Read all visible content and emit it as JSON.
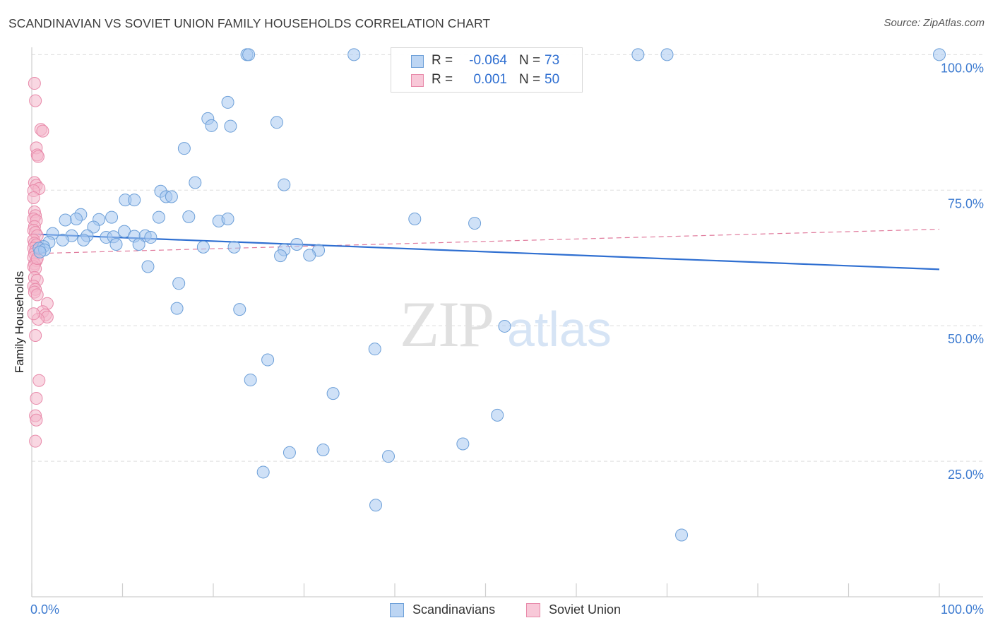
{
  "header": {
    "title": "SCANDINAVIAN VS SOVIET UNION FAMILY HOUSEHOLDS CORRELATION CHART",
    "source": "Source: ZipAtlas.com"
  },
  "watermark": {
    "zip": "ZIP",
    "atlas": "atlas"
  },
  "stats": [
    {
      "r_label": "R =",
      "r_value": "-0.064",
      "n_label": "N =",
      "n_value": "73"
    },
    {
      "r_label": "R =",
      "r_value": "0.001",
      "n_label": "N =",
      "n_value": "50"
    }
  ],
  "legend": {
    "items": [
      "Scandinavians",
      "Soviet Union"
    ]
  },
  "colors": {
    "blue_fill": "#a8c8f0",
    "blue_stroke": "#6c9fd8",
    "blue_line": "#2f6fd1",
    "pink_fill": "#f4b6ca",
    "pink_stroke": "#e88aaa",
    "pink_line": "#e07a9c",
    "tick_label": "#3d7bd0",
    "grid": "#dddddd"
  },
  "chart_data": {
    "type": "scatter",
    "title": "SCANDINAVIAN VS SOVIET UNION FAMILY HOUSEHOLDS CORRELATION CHART",
    "ylabel": "Family Households",
    "xlabel": "",
    "xlim": [
      0,
      100
    ],
    "ylim": [
      0,
      102
    ],
    "x_tick_labels": [
      {
        "value": 0,
        "label": "0.0%"
      },
      {
        "value": 100,
        "label": "100.0%"
      }
    ],
    "y_tick_labels": [
      {
        "value": 100,
        "label": "100.0%"
      },
      {
        "value": 75,
        "label": "75.0%"
      },
      {
        "value": 50,
        "label": "50.0%"
      },
      {
        "value": 25,
        "label": "25.0%"
      }
    ],
    "grid": true,
    "legend_position": "bottom-center",
    "series": [
      {
        "name": "Scandinavians",
        "color": "#a8c8f0",
        "points": [
          [
            23.7,
            100
          ],
          [
            23.9,
            100
          ],
          [
            35.5,
            100
          ],
          [
            66.8,
            100
          ],
          [
            70.0,
            100
          ],
          [
            100.0,
            100
          ],
          [
            21.6,
            91.2
          ],
          [
            19.4,
            88.2
          ],
          [
            19.8,
            86.9
          ],
          [
            21.9,
            86.8
          ],
          [
            27.0,
            87.5
          ],
          [
            16.8,
            82.7
          ],
          [
            18.0,
            76.4
          ],
          [
            27.8,
            76.0
          ],
          [
            14.2,
            74.8
          ],
          [
            14.8,
            73.8
          ],
          [
            15.4,
            73.8
          ],
          [
            10.3,
            73.2
          ],
          [
            11.3,
            73.2
          ],
          [
            5.4,
            70.5
          ],
          [
            8.8,
            70.0
          ],
          [
            4.9,
            69.7
          ],
          [
            3.7,
            69.5
          ],
          [
            7.4,
            69.6
          ],
          [
            17.3,
            70.1
          ],
          [
            14.0,
            70.0
          ],
          [
            20.6,
            69.3
          ],
          [
            21.6,
            69.7
          ],
          [
            42.2,
            69.7
          ],
          [
            48.8,
            68.9
          ],
          [
            6.8,
            68.2
          ],
          [
            2.3,
            67.0
          ],
          [
            4.4,
            66.6
          ],
          [
            6.1,
            66.6
          ],
          [
            8.2,
            66.3
          ],
          [
            9.0,
            66.4
          ],
          [
            10.2,
            67.4
          ],
          [
            11.3,
            66.5
          ],
          [
            12.5,
            66.6
          ],
          [
            13.1,
            66.3
          ],
          [
            3.4,
            65.8
          ],
          [
            5.7,
            65.8
          ],
          [
            1.9,
            65.4
          ],
          [
            9.3,
            65.0
          ],
          [
            11.8,
            65.0
          ],
          [
            29.2,
            65.0
          ],
          [
            1.3,
            64.6
          ],
          [
            0.8,
            64.3
          ],
          [
            1.4,
            64.0
          ],
          [
            0.9,
            63.6
          ],
          [
            18.9,
            64.5
          ],
          [
            22.3,
            64.5
          ],
          [
            27.8,
            64.0
          ],
          [
            27.4,
            62.9
          ],
          [
            31.6,
            63.9
          ],
          [
            30.6,
            63.0
          ],
          [
            12.8,
            60.9
          ],
          [
            16.2,
            57.8
          ],
          [
            16.0,
            53.2
          ],
          [
            22.9,
            53.0
          ],
          [
            52.1,
            49.9
          ],
          [
            37.8,
            45.7
          ],
          [
            26.0,
            43.7
          ],
          [
            24.1,
            40.0
          ],
          [
            33.2,
            37.5
          ],
          [
            51.3,
            33.5
          ],
          [
            28.4,
            26.6
          ],
          [
            32.1,
            27.1
          ],
          [
            39.3,
            25.9
          ],
          [
            47.5,
            28.2
          ],
          [
            25.5,
            23.0
          ],
          [
            37.9,
            16.9
          ],
          [
            71.6,
            11.4
          ]
        ],
        "trend": {
          "x": [
            0,
            100
          ],
          "y": [
            66.9,
            60.4
          ]
        }
      },
      {
        "name": "Soviet Union",
        "color": "#f4b6ca",
        "points": [
          [
            0.3,
            94.7
          ],
          [
            0.4,
            91.5
          ],
          [
            1.0,
            86.2
          ],
          [
            1.2,
            85.9
          ],
          [
            0.5,
            82.8
          ],
          [
            0.6,
            81.5
          ],
          [
            0.7,
            81.2
          ],
          [
            0.3,
            76.4
          ],
          [
            0.5,
            75.9
          ],
          [
            0.8,
            75.3
          ],
          [
            0.2,
            74.9
          ],
          [
            0.2,
            73.6
          ],
          [
            0.3,
            71.0
          ],
          [
            0.4,
            70.3
          ],
          [
            0.2,
            69.7
          ],
          [
            0.5,
            69.4
          ],
          [
            0.3,
            68.3
          ],
          [
            0.2,
            67.6
          ],
          [
            0.4,
            67.2
          ],
          [
            0.6,
            66.6
          ],
          [
            0.2,
            65.8
          ],
          [
            0.3,
            65.2
          ],
          [
            0.5,
            64.9
          ],
          [
            0.2,
            64.3
          ],
          [
            0.4,
            63.8
          ],
          [
            0.3,
            63.3
          ],
          [
            0.2,
            62.6
          ],
          [
            0.5,
            62.0
          ],
          [
            0.3,
            61.4
          ],
          [
            0.2,
            60.9
          ],
          [
            0.4,
            60.5
          ],
          [
            0.3,
            58.9
          ],
          [
            0.6,
            58.4
          ],
          [
            0.2,
            57.3
          ],
          [
            0.4,
            56.7
          ],
          [
            0.3,
            56.2
          ],
          [
            0.6,
            55.7
          ],
          [
            1.7,
            54.1
          ],
          [
            1.2,
            52.6
          ],
          [
            1.5,
            52.0
          ],
          [
            1.7,
            51.6
          ],
          [
            0.7,
            51.2
          ],
          [
            0.4,
            48.2
          ],
          [
            0.8,
            39.9
          ],
          [
            0.5,
            36.6
          ],
          [
            0.4,
            33.4
          ],
          [
            0.5,
            32.6
          ],
          [
            0.4,
            28.7
          ],
          [
            0.2,
            52.2
          ],
          [
            0.6,
            62.4
          ]
        ],
        "trend": {
          "x": [
            0,
            100
          ],
          "y": [
            63.3,
            67.8
          ]
        }
      }
    ]
  }
}
